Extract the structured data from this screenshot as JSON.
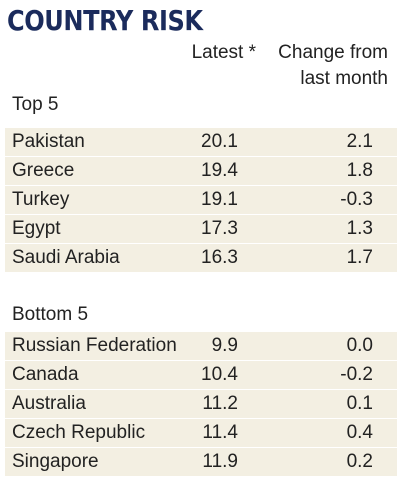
{
  "title": "COUNTRY RISK",
  "headers": {
    "latest": "Latest *",
    "change_line1": "Change from",
    "change_line2": "last month"
  },
  "top": {
    "label": "Top 5",
    "rows": [
      {
        "country": "Pakistan",
        "latest": "20.1",
        "change": "2.1"
      },
      {
        "country": "Greece",
        "latest": "19.4",
        "change": "1.8"
      },
      {
        "country": "Turkey",
        "latest": "19.1",
        "change": "-0.3"
      },
      {
        "country": "Egypt",
        "latest": "17.3",
        "change": "1.3"
      },
      {
        "country": "Saudi Arabia",
        "latest": "16.3",
        "change": "1.7"
      }
    ]
  },
  "bottom": {
    "label": "Bottom 5",
    "rows": [
      {
        "country": "Russian Federation",
        "latest": "9.9",
        "change": "0.0"
      },
      {
        "country": "Canada",
        "latest": "10.4",
        "change": "-0.2"
      },
      {
        "country": "Australia",
        "latest": "11.2",
        "change": "0.1"
      },
      {
        "country": "Czech Republic",
        "latest": "11.4",
        "change": "0.4"
      },
      {
        "country": "Singapore",
        "latest": "11.9",
        "change": "0.2"
      }
    ]
  }
}
